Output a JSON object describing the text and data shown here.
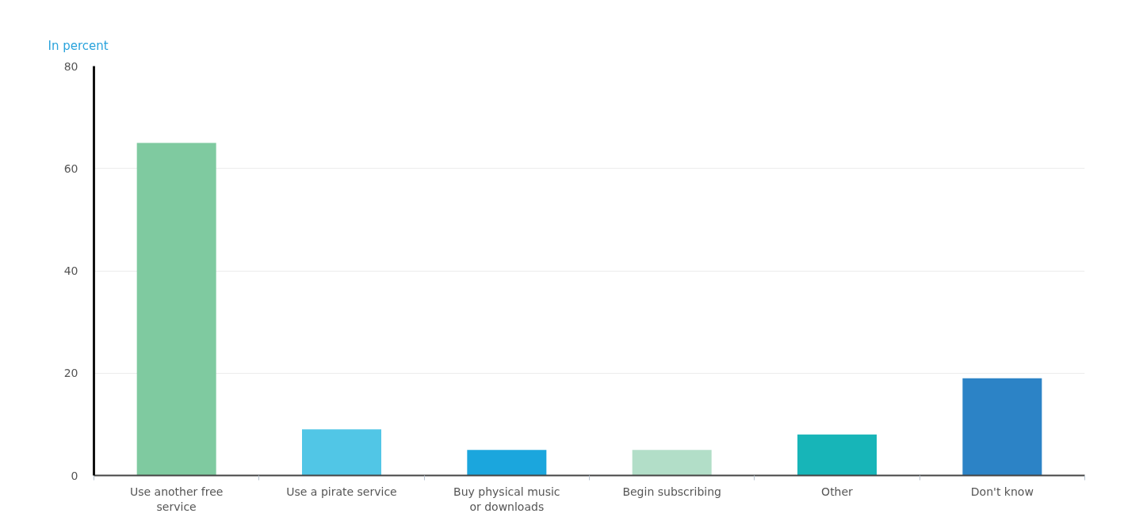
{
  "chart_data": {
    "type": "bar",
    "ylabel": "In percent",
    "categories": [
      "Use another free service",
      "Use a pirate service",
      "Buy physical music or downloads",
      "Begin subscribing",
      "Other",
      "Don't know"
    ],
    "values": [
      65,
      9,
      5,
      5,
      8,
      19
    ],
    "colors": [
      "#7fcaa0",
      "#51c6e6",
      "#1ba6dd",
      "#b2dec8",
      "#17b5b8",
      "#2c83c6"
    ],
    "ylim": [
      0,
      80
    ],
    "yticks": [
      0,
      20,
      40,
      60,
      80
    ],
    "grid": "y"
  }
}
